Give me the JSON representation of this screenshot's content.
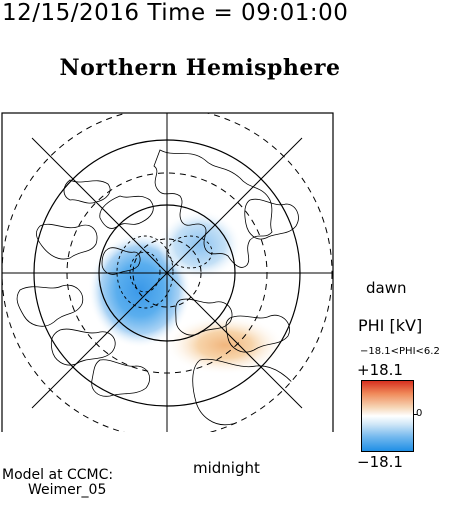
{
  "header": {
    "timestamp": "12/15/2016 Time = 09:01:00",
    "title": "Northern Hemisphere"
  },
  "map": {
    "dawn_label": "dawn",
    "midnight_label": "midnight",
    "projection": "polar-stereographic-north",
    "features": [
      "coastlines",
      "latitude-circles",
      "meridians",
      "potential-contours"
    ]
  },
  "colorbar": {
    "title": "PHI [kV]",
    "range_text": "−18.1<PHI<6.2",
    "max_label": "+18.1",
    "min_label": "−18.1",
    "zero_label": "0",
    "colors": {
      "positive": "#d7301f",
      "zero": "#ffffff",
      "negative": "#1f8fe6"
    }
  },
  "credit": {
    "line1": "Model at CCMC:",
    "line2": "Weimer_05"
  }
}
